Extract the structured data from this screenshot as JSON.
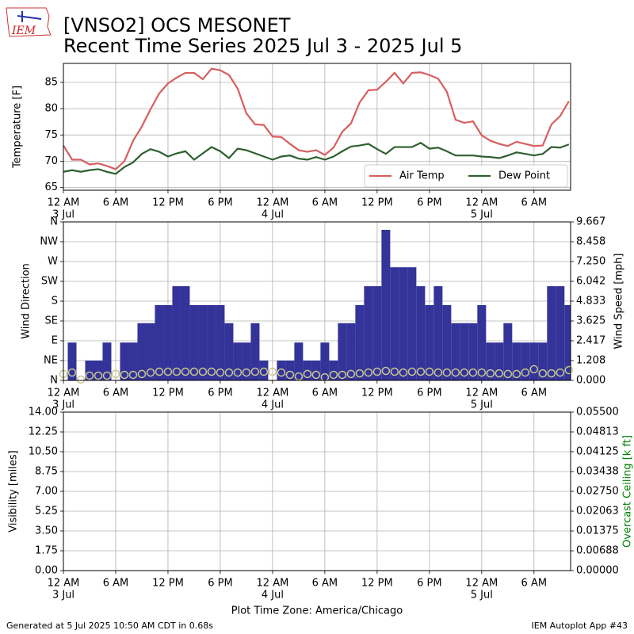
{
  "header": {
    "title": "[VNSO2] OCS MESONET",
    "subtitle": "Recent Time Series 2025 Jul 3 - 2025 Jul 5",
    "logo_text": "IEM"
  },
  "footer": {
    "generated": "Generated at 5 Jul 2025 10:50 AM CDT in 0.68s",
    "app": "IEM Autoplot App #43"
  },
  "chart_data": [
    {
      "type": "line",
      "ylabel": "Temperature [F]",
      "grid": true,
      "legend": "lower right",
      "x": [
        "2025-07-03T00:00",
        "2025-07-03T01:00",
        "2025-07-03T02:00",
        "2025-07-03T03:00",
        "2025-07-03T04:00",
        "2025-07-03T05:00",
        "2025-07-03T06:00",
        "2025-07-03T07:00",
        "2025-07-03T08:00",
        "2025-07-03T09:00",
        "2025-07-03T10:00",
        "2025-07-03T11:00",
        "2025-07-03T12:00",
        "2025-07-03T13:00",
        "2025-07-03T14:00",
        "2025-07-03T15:00",
        "2025-07-03T16:00",
        "2025-07-03T17:00",
        "2025-07-03T18:00",
        "2025-07-03T19:00",
        "2025-07-03T20:00",
        "2025-07-03T21:00",
        "2025-07-03T22:00",
        "2025-07-03T23:00",
        "2025-07-04T00:00",
        "2025-07-04T01:00",
        "2025-07-04T02:00",
        "2025-07-04T03:00",
        "2025-07-04T04:00",
        "2025-07-04T05:00",
        "2025-07-04T06:00",
        "2025-07-04T07:00",
        "2025-07-04T08:00",
        "2025-07-04T09:00",
        "2025-07-04T10:00",
        "2025-07-04T11:00",
        "2025-07-04T12:00",
        "2025-07-04T13:00",
        "2025-07-04T14:00",
        "2025-07-04T15:00",
        "2025-07-04T16:00",
        "2025-07-04T17:00",
        "2025-07-04T18:00",
        "2025-07-04T19:00",
        "2025-07-04T20:00",
        "2025-07-04T21:00",
        "2025-07-04T22:00",
        "2025-07-04T23:00",
        "2025-07-05T00:00",
        "2025-07-05T01:00",
        "2025-07-05T02:00",
        "2025-07-05T03:00",
        "2025-07-05T04:00",
        "2025-07-05T05:00",
        "2025-07-05T06:00",
        "2025-07-05T07:00",
        "2025-07-05T08:00",
        "2025-07-05T09:00",
        "2025-07-05T10:00"
      ],
      "series": [
        {
          "name": "Air Temp",
          "color": "#d65f5f",
          "values": [
            73,
            70.3,
            70.3,
            69.4,
            69.6,
            69.1,
            68.5,
            70,
            73.9,
            76.6,
            79.9,
            82.9,
            84.8,
            85.9,
            86.8,
            86.8,
            85.6,
            87.6,
            87.3,
            86.4,
            83.8,
            79.1,
            77,
            76.9,
            74.7,
            74.6,
            73.3,
            72.1,
            71.8,
            72.1,
            71.2,
            72.6,
            75.6,
            77.2,
            81.2,
            83.5,
            83.6,
            85.1,
            86.8,
            84.8,
            86.8,
            86.9,
            86.4,
            85.7,
            83.2,
            77.9,
            77.3,
            77.6,
            74.9,
            73.9,
            73.3,
            72.9,
            73.7,
            73.3,
            72.9,
            73,
            77,
            78.6,
            81.4
          ]
        },
        {
          "name": "Dew Point",
          "color": "#2e5f2e",
          "values": [
            68,
            68.3,
            68,
            68.3,
            68.5,
            68,
            67.6,
            68.9,
            69.8,
            71.4,
            72.3,
            71.8,
            70.9,
            71.5,
            71.9,
            70.3,
            71.5,
            72.7,
            71.9,
            70.6,
            72.4,
            72.1,
            71.5,
            70.9,
            70.3,
            70.9,
            71.1,
            70.5,
            70.3,
            70.8,
            70.3,
            70.9,
            71.9,
            72.8,
            73,
            73.3,
            72.3,
            71.4,
            72.7,
            72.7,
            72.7,
            73.5,
            72.4,
            72.6,
            71.9,
            71.1,
            71.1,
            71.1,
            70.9,
            70.8,
            70.6,
            71.1,
            71.7,
            71.4,
            71.1,
            71.4,
            72.7,
            72.6,
            73.2
          ]
        }
      ],
      "xlim": [
        "2025-07-03T00:00",
        "2025-07-05T10:12"
      ],
      "xticks": [
        {
          "value": "2025-07-03T00:00",
          "label": "12 AM"
        },
        {
          "value": "2025-07-03T06:00",
          "label": "6 AM"
        },
        {
          "value": "2025-07-03T12:00",
          "label": "12 PM"
        },
        {
          "value": "2025-07-03T18:00",
          "label": "6 PM"
        },
        {
          "value": "2025-07-04T00:00",
          "label": "12 AM"
        },
        {
          "value": "2025-07-04T06:00",
          "label": "6 AM"
        },
        {
          "value": "2025-07-04T12:00",
          "label": "12 PM"
        },
        {
          "value": "2025-07-04T18:00",
          "label": "6 PM"
        },
        {
          "value": "2025-07-05T00:00",
          "label": "12 AM"
        },
        {
          "value": "2025-07-05T06:00",
          "label": "6 AM"
        }
      ],
      "xtick_dates": [
        {
          "value": "2025-07-03T00:00",
          "label": "3 Jul"
        },
        {
          "value": "2025-07-04T00:00",
          "label": "4 Jul"
        },
        {
          "value": "2025-07-05T00:00",
          "label": "5 Jul"
        }
      ],
      "ylim": [
        64.5,
        88.6
      ],
      "yticks": [
        65,
        70,
        75,
        80,
        85
      ]
    },
    {
      "type": "bar",
      "ylabel": "Wind Direction",
      "y2label": "Wind Speed [mph]",
      "grid": true,
      "x": [
        "2025-07-03T00:00",
        "2025-07-03T01:00",
        "2025-07-03T02:00",
        "2025-07-03T03:00",
        "2025-07-03T04:00",
        "2025-07-03T05:00",
        "2025-07-03T06:00",
        "2025-07-03T07:00",
        "2025-07-03T08:00",
        "2025-07-03T09:00",
        "2025-07-03T10:00",
        "2025-07-03T11:00",
        "2025-07-03T12:00",
        "2025-07-03T13:00",
        "2025-07-03T14:00",
        "2025-07-03T15:00",
        "2025-07-03T16:00",
        "2025-07-03T17:00",
        "2025-07-03T18:00",
        "2025-07-03T19:00",
        "2025-07-03T20:00",
        "2025-07-03T21:00",
        "2025-07-03T22:00",
        "2025-07-03T23:00",
        "2025-07-04T00:00",
        "2025-07-04T01:00",
        "2025-07-04T02:00",
        "2025-07-04T03:00",
        "2025-07-04T04:00",
        "2025-07-04T05:00",
        "2025-07-04T06:00",
        "2025-07-04T07:00",
        "2025-07-04T08:00",
        "2025-07-04T09:00",
        "2025-07-04T10:00",
        "2025-07-04T11:00",
        "2025-07-04T12:00",
        "2025-07-04T13:00",
        "2025-07-04T14:00",
        "2025-07-04T15:00",
        "2025-07-04T16:00",
        "2025-07-04T17:00",
        "2025-07-04T18:00",
        "2025-07-04T19:00",
        "2025-07-04T20:00",
        "2025-07-04T21:00",
        "2025-07-04T22:00",
        "2025-07-04T23:00",
        "2025-07-05T00:00",
        "2025-07-05T01:00",
        "2025-07-05T02:00",
        "2025-07-05T03:00",
        "2025-07-05T04:00",
        "2025-07-05T05:00",
        "2025-07-05T06:00",
        "2025-07-05T07:00",
        "2025-07-05T08:00",
        "2025-07-05T09:00",
        "2025-07-05T10:00"
      ],
      "series": [
        {
          "type": "bar",
          "color": "#333399",
          "values": [
            0,
            86,
            0,
            45,
            45,
            86,
            0,
            86,
            86,
            130,
            130,
            171,
            171,
            214,
            214,
            171,
            171,
            171,
            171,
            130,
            86,
            86,
            130,
            45,
            0,
            45,
            45,
            86,
            45,
            45,
            86,
            45,
            130,
            130,
            171,
            214,
            214,
            342,
            257,
            257,
            257,
            214,
            171,
            214,
            171,
            130,
            130,
            130,
            171,
            86,
            86,
            130,
            86,
            86,
            86,
            86,
            214,
            214,
            171
          ]
        },
        {
          "type": "scatter",
          "axis": "y2",
          "color": "#c8c890",
          "values": [
            0.39,
            0.48,
            0.05,
            0.29,
            0.29,
            0.29,
            0.39,
            0.34,
            0.34,
            0.39,
            0.48,
            0.53,
            0.53,
            0.53,
            0.53,
            0.53,
            0.53,
            0.53,
            0.48,
            0.48,
            0.48,
            0.48,
            0.53,
            0.53,
            0.53,
            0.48,
            0.34,
            0.24,
            0.39,
            0.34,
            0.19,
            0.34,
            0.34,
            0.39,
            0.43,
            0.48,
            0.53,
            0.58,
            0.53,
            0.48,
            0.53,
            0.53,
            0.53,
            0.48,
            0.48,
            0.48,
            0.48,
            0.48,
            0.48,
            0.43,
            0.43,
            0.39,
            0.39,
            0.48,
            0.68,
            0.43,
            0.43,
            0.48,
            0.63
          ]
        }
      ],
      "xlim": [
        "2025-07-03T00:00",
        "2025-07-05T10:12"
      ],
      "xticks": [
        {
          "value": "2025-07-03T00:00",
          "label": "12 AM"
        },
        {
          "value": "2025-07-03T06:00",
          "label": "6 AM"
        },
        {
          "value": "2025-07-03T12:00",
          "label": "12 PM"
        },
        {
          "value": "2025-07-03T18:00",
          "label": "6 PM"
        },
        {
          "value": "2025-07-04T00:00",
          "label": "12 AM"
        },
        {
          "value": "2025-07-04T06:00",
          "label": "6 AM"
        },
        {
          "value": "2025-07-04T12:00",
          "label": "12 PM"
        },
        {
          "value": "2025-07-04T18:00",
          "label": "6 PM"
        },
        {
          "value": "2025-07-05T00:00",
          "label": "12 AM"
        },
        {
          "value": "2025-07-05T06:00",
          "label": "6 AM"
        }
      ],
      "xtick_dates": [
        {
          "value": "2025-07-03T00:00",
          "label": "3 Jul"
        },
        {
          "value": "2025-07-04T00:00",
          "label": "4 Jul"
        },
        {
          "value": "2025-07-05T00:00",
          "label": "5 Jul"
        }
      ],
      "ylim": [
        0,
        360
      ],
      "yticks": [
        {
          "value": 0,
          "label": "N"
        },
        {
          "value": 45,
          "label": "NE"
        },
        {
          "value": 90,
          "label": "E"
        },
        {
          "value": 135,
          "label": "SE"
        },
        {
          "value": 180,
          "label": "S"
        },
        {
          "value": 225,
          "label": "SW"
        },
        {
          "value": 270,
          "label": "W"
        },
        {
          "value": 315,
          "label": "NW"
        },
        {
          "value": 360,
          "label": "N"
        }
      ],
      "y2lim": [
        0,
        9.667
      ],
      "y2ticks": [
        {
          "value": 0,
          "label": "0.000"
        },
        1.208,
        2.417,
        3.625,
        4.833,
        6.042,
        {
          "value": 7.25,
          "label": "7.250"
        },
        8.458,
        9.667
      ]
    },
    {
      "type": "line",
      "ylabel": "Visibility [miles]",
      "y2label": "Overcast Ceiling [k ft]",
      "y2label_color": "#008000",
      "xlabel": "Plot Time Zone: America/Chicago",
      "grid": true,
      "series": [],
      "xlim": [
        "2025-07-03T00:00",
        "2025-07-05T10:12"
      ],
      "xticks": [
        {
          "value": "2025-07-03T00:00",
          "label": "12 AM"
        },
        {
          "value": "2025-07-03T06:00",
          "label": "6 AM"
        },
        {
          "value": "2025-07-03T12:00",
          "label": "12 PM"
        },
        {
          "value": "2025-07-03T18:00",
          "label": "6 PM"
        },
        {
          "value": "2025-07-04T00:00",
          "label": "12 AM"
        },
        {
          "value": "2025-07-04T06:00",
          "label": "6 AM"
        },
        {
          "value": "2025-07-04T12:00",
          "label": "12 PM"
        },
        {
          "value": "2025-07-04T18:00",
          "label": "6 PM"
        },
        {
          "value": "2025-07-05T00:00",
          "label": "12 AM"
        },
        {
          "value": "2025-07-05T06:00",
          "label": "6 AM"
        }
      ],
      "xtick_dates": [
        {
          "value": "2025-07-03T00:00",
          "label": "3 Jul"
        },
        {
          "value": "2025-07-04T00:00",
          "label": "4 Jul"
        },
        {
          "value": "2025-07-05T00:00",
          "label": "5 Jul"
        }
      ],
      "ylim": [
        0,
        14
      ],
      "yticks": [
        {
          "value": 0,
          "label": "0.00"
        },
        1.75,
        {
          "value": 3.5,
          "label": "3.50"
        },
        5.25,
        {
          "value": 7,
          "label": "7.00"
        },
        8.75,
        {
          "value": 10.5,
          "label": "10.50"
        },
        12.25,
        {
          "value": 14,
          "label": "14.00"
        }
      ],
      "y2lim": [
        0,
        0.055
      ],
      "y2ticks": [
        {
          "value": 0,
          "label": "0.00000"
        },
        {
          "value": 0.006875,
          "label": "0.00688"
        },
        0.01375,
        {
          "value": 0.020625,
          "label": "0.02063"
        },
        {
          "value": 0.0275,
          "label": "0.02750"
        },
        {
          "value": 0.034375,
          "label": "0.03438"
        },
        0.04125,
        {
          "value": 0.048125,
          "label": "0.04813"
        },
        {
          "value": 0.055,
          "label": "0.05500"
        }
      ]
    }
  ]
}
